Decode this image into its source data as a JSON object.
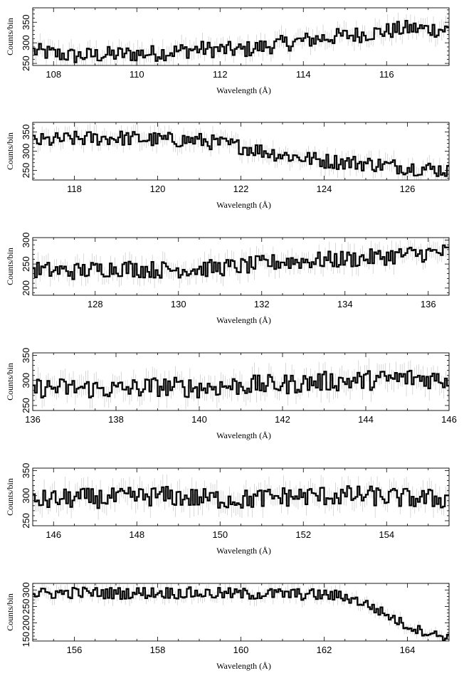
{
  "chart_data": [
    {
      "type": "line",
      "step": true,
      "xlabel": "Wavelength (Å)",
      "ylabel": "Counts/bin",
      "xlim": [
        107.5,
        117.5
      ],
      "ylim": [
        245,
        385
      ],
      "xticks": [
        108,
        110,
        112,
        114,
        116
      ],
      "yticks": [
        250,
        300,
        350
      ],
      "x": [
        107.5,
        108.5,
        109.5,
        110.5,
        111.5,
        112.5,
        113.5,
        114.5,
        115.5,
        116.5,
        117.5
      ],
      "values": [
        280,
        268,
        272,
        275,
        285,
        282,
        298,
        312,
        322,
        335,
        332
      ],
      "errors": [
        20,
        20,
        20,
        20,
        20,
        20,
        20,
        20,
        20,
        20,
        20
      ]
    },
    {
      "type": "line",
      "step": true,
      "xlabel": "Wavelength (Å)",
      "ylabel": "Counts/bin",
      "xlim": [
        117,
        127
      ],
      "ylim": [
        225,
        375
      ],
      "xticks": [
        118,
        120,
        122,
        124,
        126
      ],
      "yticks": [
        250,
        300,
        350
      ],
      "x": [
        117,
        118,
        119,
        120,
        121,
        122,
        123,
        124,
        125,
        126,
        127
      ],
      "values": [
        325,
        332,
        335,
        330,
        328,
        312,
        290,
        275,
        268,
        258,
        250
      ],
      "errors": [
        20,
        20,
        20,
        20,
        20,
        20,
        20,
        20,
        20,
        20,
        20
      ]
    },
    {
      "type": "line",
      "step": true,
      "xlabel": "Wavelength (Å)",
      "ylabel": "Counts/bin",
      "xlim": [
        126.5,
        136.5
      ],
      "ylim": [
        185,
        305
      ],
      "xticks": [
        128,
        130,
        132,
        134,
        136
      ],
      "yticks": [
        200,
        250,
        300
      ],
      "x": [
        126.5,
        127.5,
        128.5,
        129.5,
        130.5,
        131.5,
        132.5,
        133.5,
        134.5,
        135.5,
        136.5
      ],
      "values": [
        238,
        235,
        242,
        238,
        240,
        245,
        255,
        258,
        262,
        270,
        275
      ],
      "errors": [
        18,
        18,
        18,
        18,
        18,
        18,
        18,
        18,
        18,
        18,
        18
      ]
    },
    {
      "type": "line",
      "step": true,
      "xlabel": "Wavelength (Å)",
      "ylabel": "Counts/bin",
      "xlim": [
        136,
        146
      ],
      "ylim": [
        240,
        355
      ],
      "xticks": [
        136,
        138,
        140,
        142,
        144,
        146
      ],
      "yticks": [
        250,
        300,
        350
      ],
      "x": [
        136,
        137,
        138,
        139,
        140,
        141,
        142,
        143,
        144,
        145,
        146
      ],
      "values": [
        285,
        285,
        282,
        288,
        285,
        290,
        292,
        298,
        300,
        305,
        302
      ],
      "errors": [
        20,
        20,
        20,
        20,
        20,
        20,
        20,
        20,
        20,
        20,
        20
      ]
    },
    {
      "type": "line",
      "step": true,
      "xlabel": "Wavelength (Å)",
      "ylabel": "Counts/bin",
      "xlim": [
        145.5,
        155.5
      ],
      "ylim": [
        240,
        355
      ],
      "xticks": [
        146,
        148,
        150,
        152,
        154
      ],
      "yticks": [
        250,
        300,
        350
      ],
      "x": [
        145.5,
        146.5,
        147.5,
        148.5,
        149.5,
        150.5,
        151.5,
        152.5,
        153.5,
        154.5,
        155.5
      ],
      "values": [
        290,
        295,
        295,
        300,
        295,
        292,
        298,
        300,
        300,
        295,
        293
      ],
      "errors": [
        20,
        20,
        20,
        20,
        20,
        20,
        20,
        20,
        20,
        20,
        20
      ]
    },
    {
      "type": "line",
      "step": true,
      "xlabel": "Wavelength (Å)",
      "ylabel": "Counts/bin",
      "xlim": [
        155,
        165
      ],
      "ylim": [
        145,
        320
      ],
      "xticks": [
        156,
        158,
        160,
        162,
        164
      ],
      "yticks": [
        150,
        200,
        250,
        300
      ],
      "x": [
        155,
        156,
        157,
        158,
        159,
        160,
        161,
        162,
        162.5,
        163,
        163.5,
        164,
        164.5,
        165
      ],
      "values": [
        288,
        292,
        290,
        292,
        290,
        288,
        288,
        285,
        280,
        258,
        225,
        190,
        170,
        155
      ],
      "errors": [
        18,
        18,
        18,
        18,
        18,
        18,
        18,
        18,
        16,
        16,
        15,
        14,
        13,
        12
      ]
    }
  ]
}
